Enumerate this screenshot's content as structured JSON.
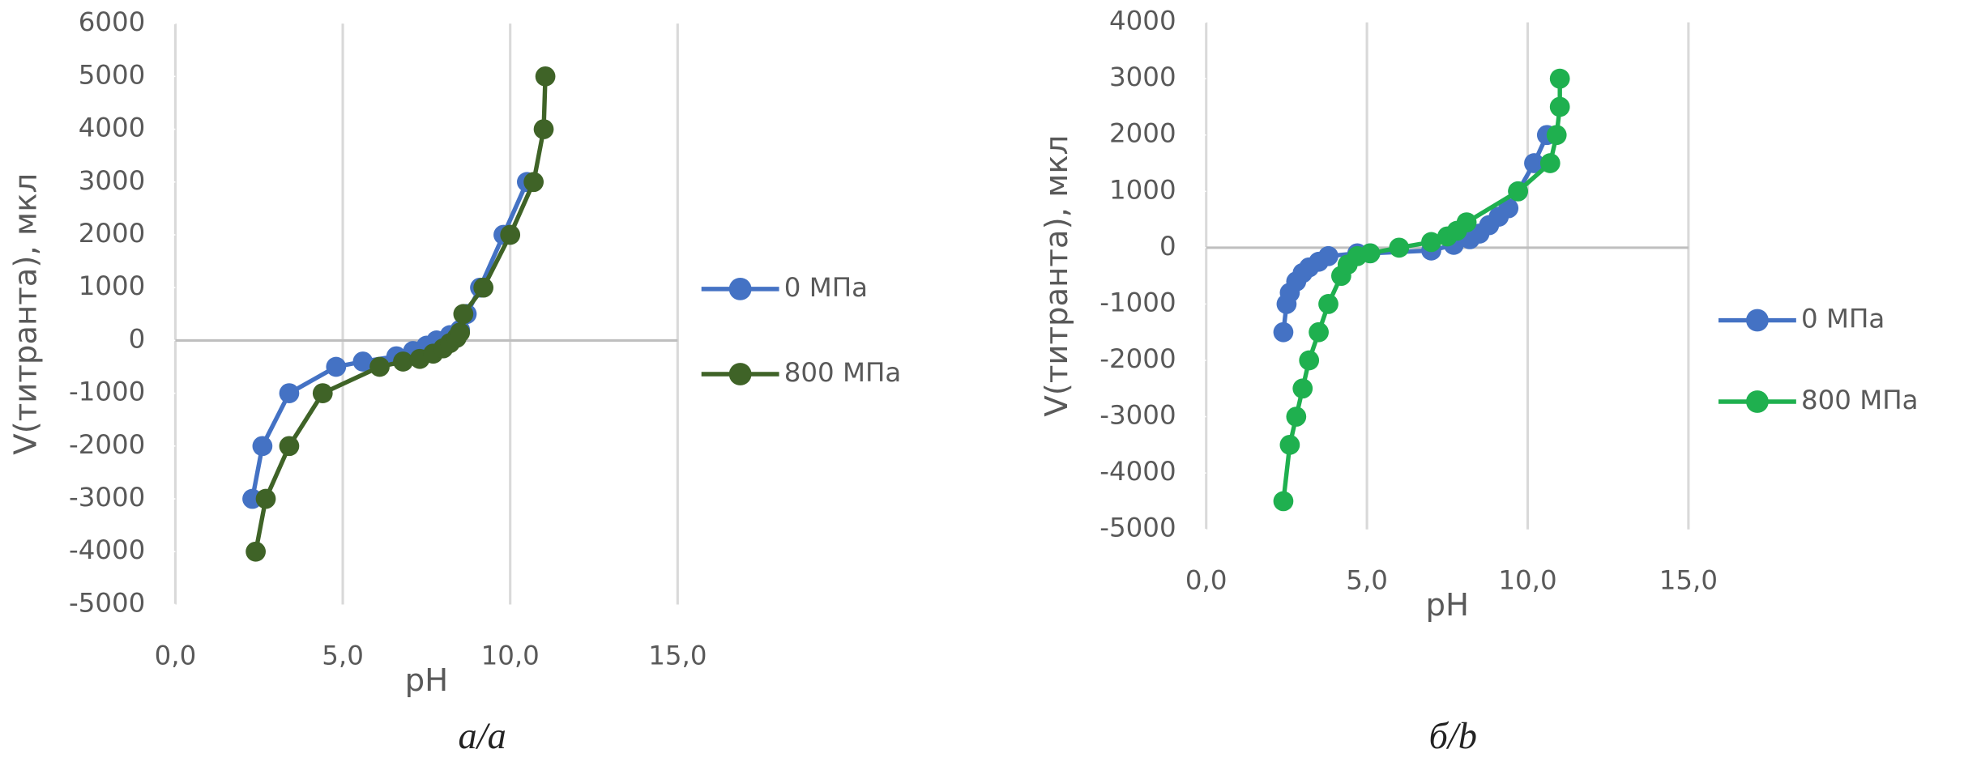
{
  "chart_data": [
    {
      "type": "line",
      "caption": "а/a",
      "xlabel": "pH",
      "ylabel": "V(титранта), мкл",
      "grid": "vertical",
      "legend": "right",
      "xlim": [
        0,
        15
      ],
      "xticks": [
        {
          "value": 0,
          "label": "0,0"
        },
        {
          "value": 5,
          "label": "5,0"
        },
        {
          "value": 10,
          "label": "10,0"
        },
        {
          "value": 15,
          "label": "15,0"
        }
      ],
      "ylim": [
        -5000,
        6000
      ],
      "yticks": [
        -5000,
        -4000,
        -3000,
        -2000,
        -1000,
        0,
        1000,
        2000,
        3000,
        4000,
        5000,
        6000
      ],
      "series": [
        {
          "name": "0 МПа",
          "color": "#4472c4",
          "x": [
            2.3,
            2.6,
            3.4,
            4.8,
            5.6,
            6.6,
            7.1,
            7.5,
            7.8,
            8.2,
            8.5,
            8.7,
            9.1,
            9.8,
            10.5
          ],
          "values": [
            -3000,
            -2000,
            -1000,
            -500,
            -400,
            -300,
            -200,
            -100,
            0,
            100,
            200,
            500,
            1000,
            2000,
            3000
          ]
        },
        {
          "name": "800 МПа",
          "color": "#3f6327",
          "x": [
            2.4,
            2.7,
            3.4,
            4.4,
            6.1,
            6.8,
            7.3,
            7.7,
            8.0,
            8.2,
            8.4,
            8.5,
            8.6,
            9.2,
            10.0,
            10.7,
            11.0,
            11.05
          ],
          "values": [
            -4000,
            -3000,
            -2000,
            -1000,
            -500,
            -400,
            -350,
            -250,
            -150,
            -50,
            50,
            150,
            500,
            1000,
            2000,
            3000,
            4000,
            5000
          ]
        }
      ]
    },
    {
      "type": "line",
      "caption": "б/b",
      "xlabel": "pH",
      "ylabel": "V(титранта), мкл",
      "grid": "vertical",
      "legend": "right",
      "xlim": [
        0,
        15
      ],
      "xticks": [
        {
          "value": 0,
          "label": "0,0"
        },
        {
          "value": 5,
          "label": "5,0"
        },
        {
          "value": 10,
          "label": "10,0"
        },
        {
          "value": 15,
          "label": "15,0"
        }
      ],
      "ylim": [
        -5000,
        4000
      ],
      "yticks": [
        -5000,
        -4000,
        -3000,
        -2000,
        -1000,
        0,
        1000,
        2000,
        3000,
        4000
      ],
      "series": [
        {
          "name": "0 МПа",
          "color": "#4472c4",
          "x": [
            2.4,
            2.5,
            2.6,
            2.8,
            3.0,
            3.2,
            3.5,
            3.8,
            4.7,
            5.1,
            7.0,
            7.7,
            8.2,
            8.5,
            8.8,
            9.1,
            9.4,
            9.7,
            10.2,
            10.6
          ],
          "values": [
            -1500,
            -1000,
            -800,
            -600,
            -450,
            -350,
            -250,
            -150,
            -100,
            -100,
            -50,
            50,
            150,
            250,
            400,
            550,
            700,
            1000,
            1500,
            2000
          ]
        },
        {
          "name": "800 МПа",
          "color": "#1fb04f",
          "x": [
            2.4,
            2.6,
            2.8,
            3.0,
            3.2,
            3.5,
            3.8,
            4.2,
            4.4,
            4.7,
            5.1,
            6.0,
            7.0,
            7.5,
            7.8,
            8.1,
            9.7,
            10.7,
            10.9,
            11.0,
            11.0
          ],
          "values": [
            -4500,
            -3500,
            -3000,
            -2500,
            -2000,
            -1500,
            -1000,
            -500,
            -300,
            -150,
            -100,
            0,
            100,
            200,
            300,
            450,
            1000,
            1500,
            2000,
            2500,
            3000
          ]
        }
      ]
    }
  ]
}
